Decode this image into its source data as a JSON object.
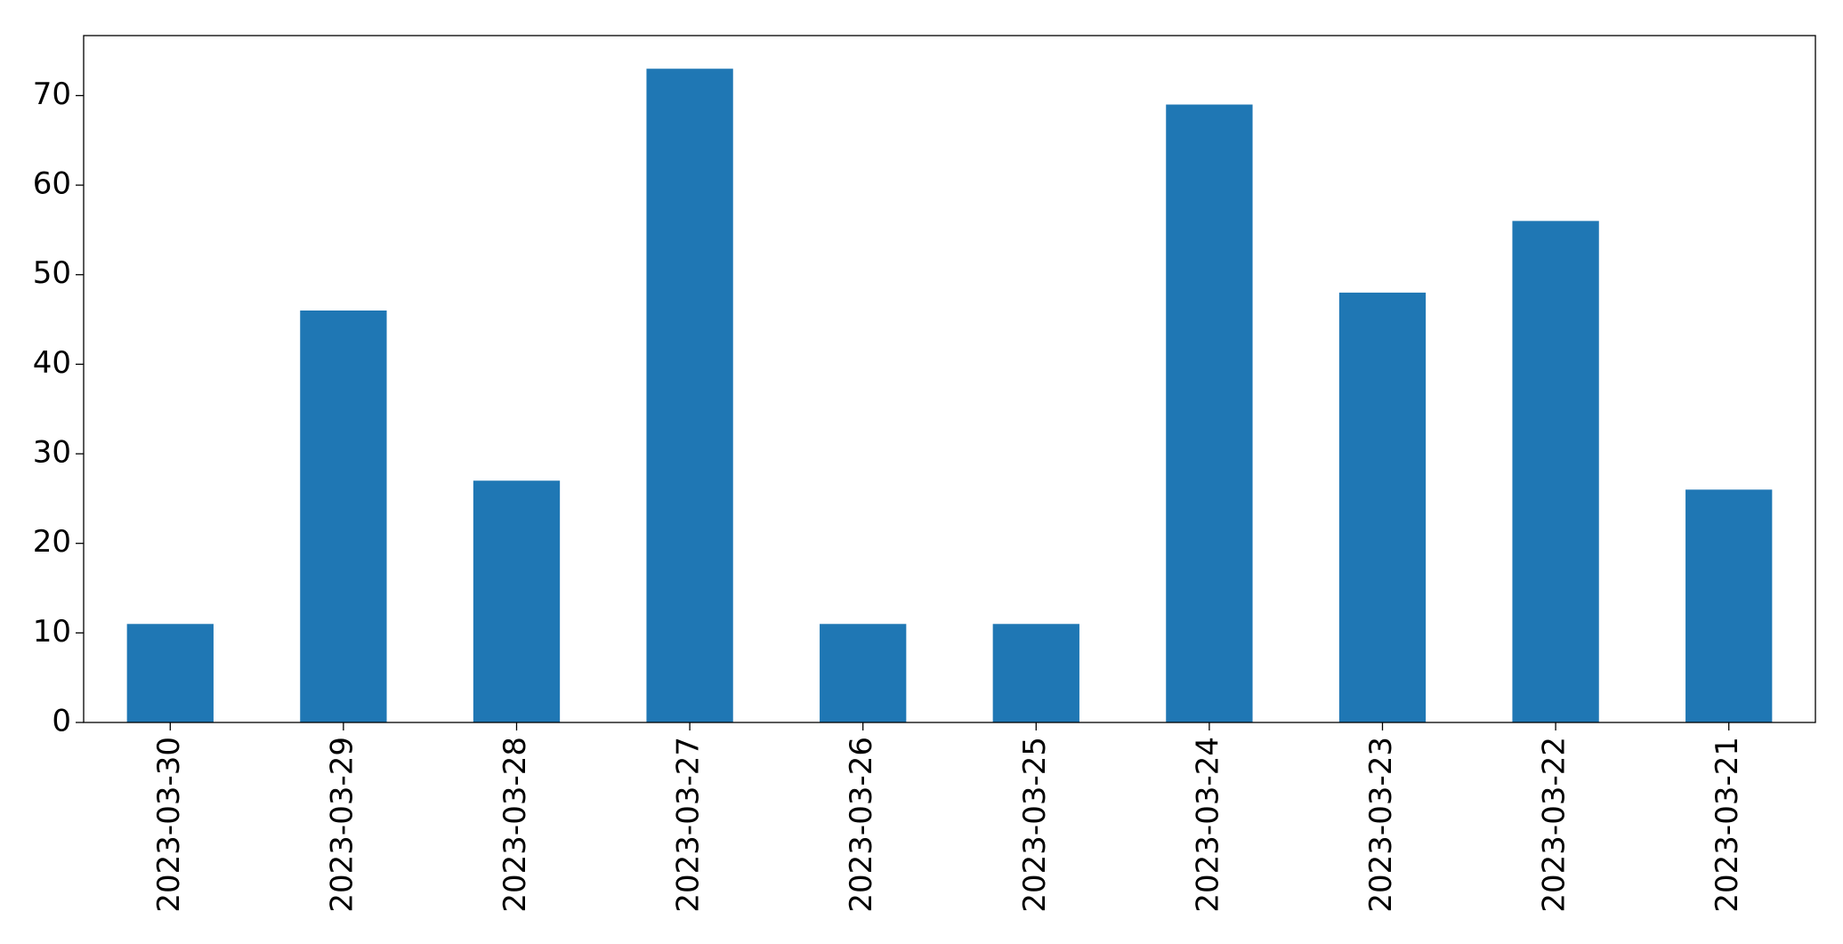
{
  "chart_data": {
    "type": "bar",
    "categories": [
      "2023-03-30",
      "2023-03-29",
      "2023-03-28",
      "2023-03-27",
      "2023-03-26",
      "2023-03-25",
      "2023-03-24",
      "2023-03-23",
      "2023-03-22",
      "2023-03-21"
    ],
    "values": [
      11,
      46,
      27,
      73,
      11,
      11,
      69,
      48,
      56,
      26
    ],
    "color": "#1f77b4",
    "ylim": [
      0,
      76.7
    ],
    "yticks": [
      0,
      10,
      20,
      30,
      40,
      50,
      60,
      70
    ],
    "grid": false
  }
}
